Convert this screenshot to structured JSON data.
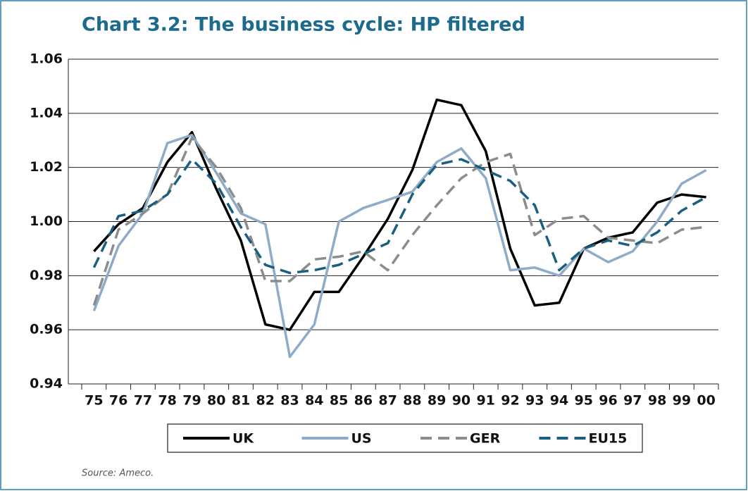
{
  "chart_data": {
    "type": "line",
    "title": "Chart 3.2: The business cycle: HP filtered",
    "categories": [
      "75",
      "76",
      "77",
      "78",
      "79",
      "80",
      "81",
      "82",
      "83",
      "84",
      "85",
      "86",
      "87",
      "88",
      "89",
      "90",
      "91",
      "92",
      "93",
      "94",
      "95",
      "96",
      "97",
      "98",
      "99",
      "00"
    ],
    "series": [
      {
        "name": "UK",
        "color": "#000000",
        "dash": false,
        "values": [
          0.989,
          0.999,
          1.005,
          1.022,
          1.033,
          1.012,
          0.993,
          0.962,
          0.96,
          0.974,
          0.974,
          0.987,
          1.001,
          1.019,
          1.045,
          1.043,
          1.026,
          0.99,
          0.969,
          0.97,
          0.99,
          0.994,
          0.996,
          1.007,
          1.01,
          1.009
        ]
      },
      {
        "name": "US",
        "color": "#8eabc8",
        "dash": false,
        "values": [
          0.967,
          0.991,
          1.003,
          1.029,
          1.032,
          1.018,
          1.003,
          0.999,
          0.95,
          0.962,
          1.0,
          1.005,
          1.008,
          1.011,
          1.022,
          1.027,
          1.016,
          0.982,
          0.983,
          0.98,
          0.99,
          0.985,
          0.989,
          1.0,
          1.014,
          1.019
        ]
      },
      {
        "name": "GER",
        "color": "#8c8c8c",
        "dash": true,
        "values": [
          0.969,
          0.997,
          1.003,
          1.01,
          1.031,
          1.02,
          1.005,
          0.978,
          0.978,
          0.986,
          0.987,
          0.989,
          0.982,
          0.995,
          1.006,
          1.016,
          1.022,
          1.025,
          0.995,
          1.001,
          1.002,
          0.994,
          0.993,
          0.992,
          0.997,
          0.998
        ]
      },
      {
        "name": "EU15",
        "color": "#1a5f80",
        "dash": true,
        "values": [
          0.983,
          1.002,
          1.004,
          1.01,
          1.023,
          1.014,
          0.998,
          0.984,
          0.981,
          0.982,
          0.984,
          0.988,
          0.992,
          1.01,
          1.021,
          1.023,
          1.019,
          1.015,
          1.006,
          0.982,
          0.99,
          0.993,
          0.991,
          0.996,
          1.004,
          1.009
        ]
      }
    ],
    "ylim": [
      0.94,
      1.06
    ],
    "yticks": [
      0.94,
      0.96,
      0.98,
      {
        "value": 1,
        "label": "1.00"
      },
      1.02,
      1.04,
      1.06
    ],
    "grid": true,
    "source": "Source: Ameco."
  }
}
